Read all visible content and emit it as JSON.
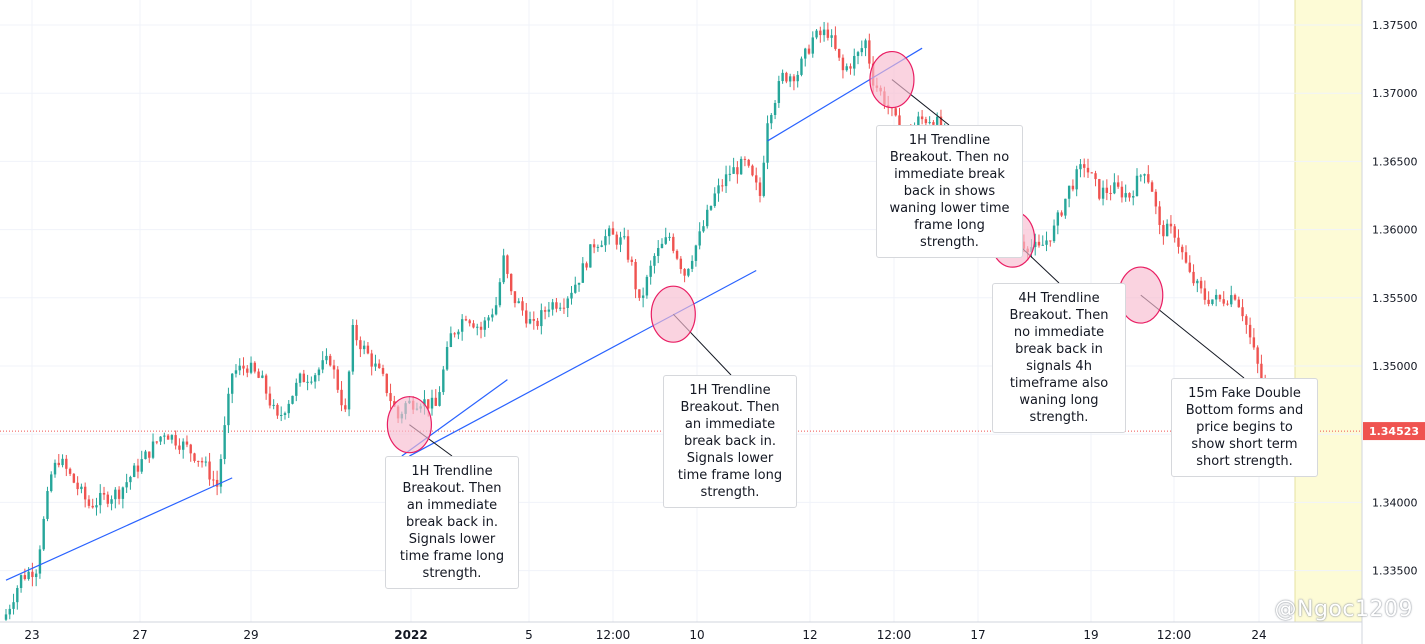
{
  "chart_data": {
    "type": "candlestick",
    "x_ticks": [
      "23",
      "27",
      "29",
      "2022",
      "5",
      "12:00",
      "10",
      "12",
      "12:00",
      "17",
      "19",
      "12:00",
      "24"
    ],
    "y_ticks": [
      "1.37500",
      "1.37000",
      "1.36500",
      "1.36000",
      "1.35500",
      "1.35000",
      "1.34500",
      "1.34000",
      "1.33500"
    ],
    "ylim": [
      1.3305,
      1.3761
    ],
    "last_price": "1.34523",
    "close_points": [
      [
        0,
        1.3318
      ],
      [
        4,
        1.3345
      ],
      [
        8,
        1.3352
      ],
      [
        12,
        1.342
      ],
      [
        14,
        1.3432
      ],
      [
        22,
        1.3398
      ],
      [
        30,
        1.3408
      ],
      [
        36,
        1.343
      ],
      [
        42,
        1.3452
      ],
      [
        48,
        1.344
      ],
      [
        52,
        1.343
      ],
      [
        56,
        1.3412
      ],
      [
        60,
        1.3495
      ],
      [
        64,
        1.35
      ],
      [
        68,
        1.3488
      ],
      [
        72,
        1.346
      ],
      [
        78,
        1.349
      ],
      [
        82,
        1.3495
      ],
      [
        86,
        1.3505
      ],
      [
        90,
        1.3465
      ],
      [
        92,
        1.3525
      ],
      [
        96,
        1.3508
      ],
      [
        100,
        1.349
      ],
      [
        104,
        1.3462
      ],
      [
        106,
        1.3472
      ],
      [
        110,
        1.3475
      ],
      [
        114,
        1.347
      ],
      [
        118,
        1.3522
      ],
      [
        122,
        1.3538
      ],
      [
        126,
        1.3527
      ],
      [
        130,
        1.3545
      ],
      [
        132,
        1.3578
      ],
      [
        134,
        1.3552
      ],
      [
        136,
        1.3545
      ],
      [
        140,
        1.3528
      ],
      [
        144,
        1.3545
      ],
      [
        148,
        1.3548
      ],
      [
        152,
        1.3565
      ],
      [
        156,
        1.359
      ],
      [
        160,
        1.3596
      ],
      [
        164,
        1.359
      ],
      [
        166,
        1.3573
      ],
      [
        168,
        1.3545
      ],
      [
        172,
        1.358
      ],
      [
        176,
        1.3595
      ],
      [
        180,
        1.3568
      ],
      [
        184,
        1.3595
      ],
      [
        188,
        1.3625
      ],
      [
        192,
        1.3642
      ],
      [
        196,
        1.3648
      ],
      [
        200,
        1.3625
      ],
      [
        202,
        1.3682
      ],
      [
        206,
        1.3712
      ],
      [
        210,
        1.3715
      ],
      [
        214,
        1.374
      ],
      [
        218,
        1.3745
      ],
      [
        222,
        1.3716
      ],
      [
        226,
        1.3728
      ],
      [
        228,
        1.3738
      ],
      [
        230,
        1.371
      ],
      [
        234,
        1.369
      ],
      [
        238,
        1.3667
      ],
      [
        242,
        1.368
      ],
      [
        246,
        1.3682
      ],
      [
        250,
        1.3665
      ],
      [
        254,
        1.3645
      ],
      [
        258,
        1.3657
      ],
      [
        262,
        1.3636
      ],
      [
        266,
        1.3598
      ],
      [
        270,
        1.359
      ],
      [
        274,
        1.3585
      ],
      [
        278,
        1.36
      ],
      [
        282,
        1.363
      ],
      [
        286,
        1.3648
      ],
      [
        290,
        1.3627
      ],
      [
        294,
        1.363
      ],
      [
        298,
        1.3625
      ],
      [
        302,
        1.3645
      ],
      [
        304,
        1.363
      ],
      [
        306,
        1.36
      ],
      [
        310,
        1.3598
      ],
      [
        314,
        1.3566
      ],
      [
        318,
        1.355
      ],
      [
        322,
        1.3548
      ],
      [
        326,
        1.3553
      ],
      [
        328,
        1.354
      ],
      [
        330,
        1.352
      ],
      [
        334,
        1.348
      ],
      [
        337,
        1.3452
      ]
    ],
    "trendlines": [
      {
        "from": [
          0,
          1.3343
        ],
        "to": [
          60,
          1.3418
        ]
      },
      {
        "from": [
          105,
          1.3434
        ],
        "to": [
          133,
          1.349
        ]
      },
      {
        "from": [
          107,
          1.3434
        ],
        "to": [
          199,
          1.357
        ]
      },
      {
        "from": [
          202,
          1.3665
        ],
        "to": [
          243,
          1.3733
        ]
      }
    ],
    "highlights": [
      [
        107,
        1.3457
      ],
      [
        177,
        1.3538
      ],
      [
        235,
        1.371
      ],
      [
        267,
        1.3593
      ],
      [
        301,
        1.3552
      ]
    ],
    "annotations": [
      {
        "id": "a1",
        "text": "1H Trendline Breakout. Then an immediate break back in. Signals lower time frame long strength.",
        "point": [
          107,
          1.3457
        ]
      },
      {
        "id": "a2",
        "text": "1H Trendline Breakout. Then an immediate break back in. Signals lower time frame long strength.",
        "point": [
          177,
          1.3538
        ]
      },
      {
        "id": "a3",
        "text": "1H Trendline Breakout. Then no immediate break back in shows waning lower time frame long strength.",
        "point": [
          235,
          1.371
        ]
      },
      {
        "id": "a4",
        "text": "4H Trendline Breakout. Then no immediate break back in signals 4h timeframe also waning long strength.",
        "point": [
          267,
          1.3593
        ]
      },
      {
        "id": "a5",
        "text": "15m Fake Double Bottom forms and price begins to show short term short strength.",
        "point": [
          301,
          1.3552
        ]
      }
    ],
    "grid": true
  },
  "watermark": "@Ngoc1209",
  "colors": {
    "up": "#26a69a",
    "down": "#ef5350",
    "trendline": "#2962ff",
    "highlight_fill": "#f8bbd0",
    "highlight_stroke": "#e91e63",
    "price_label": "#ef5350",
    "highlight_zone": "#fdfbd6"
  }
}
